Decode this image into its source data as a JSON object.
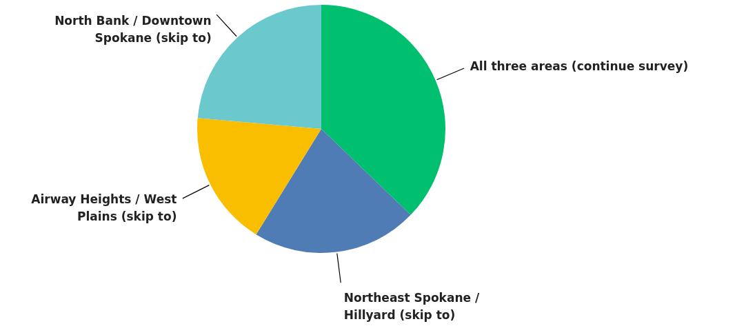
{
  "chart_data": {
    "type": "pie",
    "categories": [
      "All three areas (continue survey)",
      "Northeast Spokane / Hillyard (skip to)",
      "Airway Heights / West Plains (skip to)",
      "North Bank / Downtown Spokane (skip to)"
    ],
    "values": [
      37.2,
      21.6,
      17.6,
      23.6
    ],
    "colors": [
      "#00bf6f",
      "#507cb6",
      "#f9be00",
      "#6bc8cd"
    ]
  }
}
